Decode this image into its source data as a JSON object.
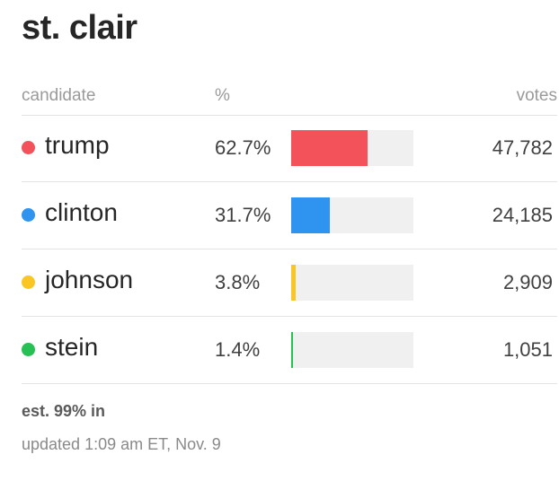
{
  "county": "st. clair",
  "columns": {
    "candidate": "candidate",
    "percent": "%",
    "votes": "votes"
  },
  "candidates": [
    {
      "name": "trump",
      "percent_label": "62.7%",
      "percent": 62.7,
      "votes": "47,782",
      "color": "#f4525a"
    },
    {
      "name": "clinton",
      "percent_label": "31.7%",
      "percent": 31.7,
      "votes": "24,185",
      "color": "#2f93f0"
    },
    {
      "name": "johnson",
      "percent_label": "3.8%",
      "percent": 3.8,
      "votes": "2,909",
      "color": "#f9c623"
    },
    {
      "name": "stein",
      "percent_label": "1.4%",
      "percent": 1.4,
      "votes": "1,051",
      "color": "#27c054"
    }
  ],
  "footer": {
    "estimate": "est. 99% in",
    "updated": "updated 1:09 am ET, Nov. 9"
  }
}
